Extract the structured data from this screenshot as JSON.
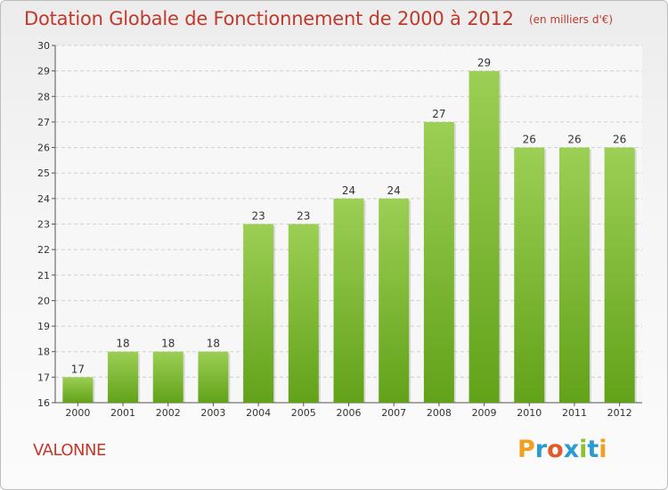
{
  "header": {
    "title": "Dotation Globale de Fonctionnement de 2000 à 2012",
    "unit": "(en milliers d'€)"
  },
  "footer": {
    "commune": "VALONNE",
    "logo_text": "Proxiti"
  },
  "colors": {
    "title": "#c0392b",
    "bar_top": "#9ccf55",
    "bar_bottom": "#62a219",
    "grid": "#d0d0d0",
    "logo_letters": [
      "#f0a020",
      "#2a9ad0",
      "#e05a2a",
      "#2a9ad0",
      "#90c030",
      "#2a9ad0",
      "#f0a020"
    ]
  },
  "chart_data": {
    "type": "bar",
    "categories": [
      "2000",
      "2001",
      "2002",
      "2003",
      "2004",
      "2005",
      "2006",
      "2007",
      "2008",
      "2009",
      "2010",
      "2011",
      "2012"
    ],
    "values": [
      17,
      18,
      18,
      18,
      23,
      23,
      24,
      24,
      27,
      29,
      26,
      26,
      26
    ],
    "ylim": [
      16,
      30
    ],
    "yticks": [
      16,
      17,
      18,
      19,
      20,
      21,
      22,
      23,
      24,
      25,
      26,
      27,
      28,
      29,
      30
    ],
    "grid": "horizontal dashed",
    "data_labels": true
  }
}
